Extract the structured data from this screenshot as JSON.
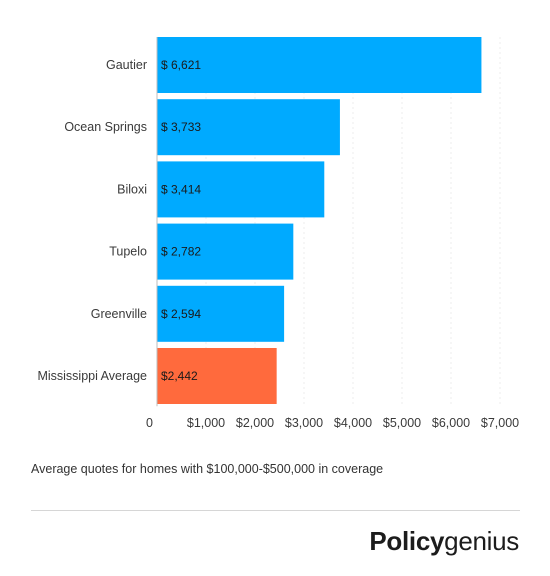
{
  "chart_data": {
    "type": "bar",
    "orientation": "horizontal",
    "categories": [
      "Gautier",
      "Ocean Springs",
      "Biloxi",
      "Tupelo",
      "Greenville",
      "Mississippi Average"
    ],
    "values": [
      6621,
      3733,
      3414,
      2782,
      2594,
      2442
    ],
    "data_labels": [
      "$ 6,621",
      "$ 3,733",
      "$ 3,414",
      "$ 2,782",
      "$ 2,594",
      "$2,442"
    ],
    "colors": [
      "#00aaff",
      "#00aaff",
      "#00aaff",
      "#00aaff",
      "#00aaff",
      "#ff6a3d"
    ],
    "xlim": [
      0,
      7000
    ],
    "xticks": [
      0,
      1000,
      2000,
      3000,
      4000,
      5000,
      6000,
      7000
    ],
    "xtick_labels": [
      "0",
      "$1,000",
      "$2,000",
      "$3,000",
      "$4,000",
      "$5,000",
      "$6,000",
      "$7,000"
    ],
    "grid": true,
    "title": "",
    "xlabel": "",
    "ylabel": ""
  },
  "caption": "Average quotes for homes with $100,000-$500,000 in coverage",
  "brand": {
    "bold": "Policy",
    "light": "genius"
  }
}
